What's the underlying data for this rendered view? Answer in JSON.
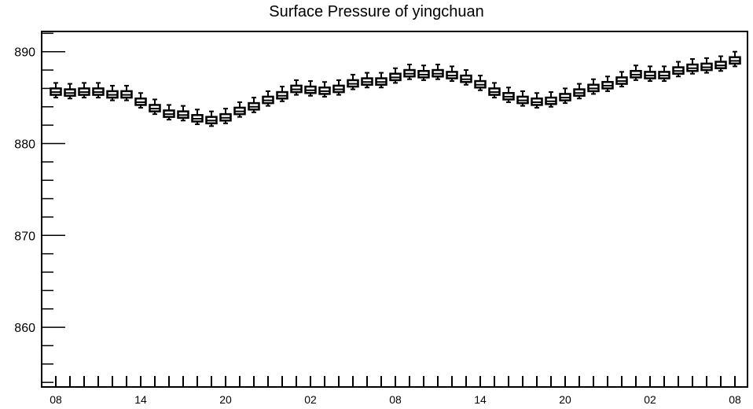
{
  "chart_data": {
    "type": "boxplot",
    "title": "Surface Pressure of yingchuan",
    "xlabel": "",
    "ylabel": "",
    "ylim": [
      853.5,
      892.2
    ],
    "yticks": [
      860,
      870,
      880,
      890
    ],
    "x_tick_labels": [
      "08",
      "14",
      "20",
      "02",
      "08",
      "14",
      "20",
      "02",
      "08"
    ],
    "grid": false,
    "box_count": 49,
    "series": [
      {
        "medians": [
          885.6,
          885.5,
          885.6,
          885.6,
          885.3,
          885.3,
          884.5,
          883.8,
          883.2,
          883.1,
          882.7,
          882.5,
          882.8,
          883.5,
          884.0,
          884.7,
          885.2,
          885.9,
          885.8,
          885.7,
          885.9,
          886.5,
          886.7,
          886.7,
          887.2,
          887.6,
          887.5,
          887.6,
          887.4,
          887.0,
          886.4,
          885.6,
          885.1,
          884.7,
          884.5,
          884.6,
          885.0,
          885.5,
          886.0,
          886.3,
          886.8,
          887.5,
          887.4,
          887.4,
          887.9,
          888.2,
          888.3,
          888.5,
          889.0
        ],
        "q1": [
          885.3,
          885.2,
          885.3,
          885.3,
          885.0,
          885.0,
          884.2,
          883.5,
          882.9,
          882.8,
          882.4,
          882.2,
          882.5,
          883.2,
          883.7,
          884.4,
          884.9,
          885.6,
          885.5,
          885.4,
          885.6,
          886.2,
          886.4,
          886.4,
          886.9,
          887.3,
          887.2,
          887.3,
          887.1,
          886.7,
          886.1,
          885.3,
          884.8,
          884.4,
          884.2,
          884.3,
          884.7,
          885.2,
          885.7,
          886.0,
          886.5,
          887.2,
          887.1,
          887.1,
          887.6,
          887.9,
          888.0,
          888.2,
          888.7
        ],
        "q3": [
          886.0,
          885.9,
          886.0,
          886.0,
          885.7,
          885.7,
          884.9,
          884.2,
          883.6,
          883.5,
          883.1,
          882.9,
          883.2,
          883.9,
          884.4,
          885.1,
          885.6,
          886.3,
          886.2,
          886.1,
          886.3,
          886.9,
          887.1,
          887.1,
          887.6,
          888.0,
          887.9,
          888.0,
          887.8,
          887.4,
          886.8,
          886.0,
          885.5,
          885.1,
          884.9,
          885.0,
          885.4,
          885.9,
          886.4,
          886.7,
          887.2,
          887.9,
          887.8,
          887.8,
          888.3,
          888.6,
          888.7,
          888.9,
          889.4
        ],
        "low": [
          885.0,
          884.9,
          885.0,
          885.0,
          884.7,
          884.7,
          883.9,
          883.2,
          882.6,
          882.5,
          882.1,
          881.9,
          882.2,
          882.9,
          883.4,
          884.1,
          884.6,
          885.3,
          885.2,
          885.1,
          885.3,
          885.9,
          886.1,
          886.1,
          886.6,
          887.0,
          886.9,
          887.0,
          886.8,
          886.4,
          885.8,
          885.0,
          884.5,
          884.1,
          883.9,
          884.0,
          884.4,
          884.9,
          885.4,
          885.7,
          886.2,
          886.9,
          886.8,
          886.8,
          887.3,
          887.6,
          887.7,
          887.9,
          888.4
        ],
        "high": [
          886.6,
          886.5,
          886.6,
          886.6,
          886.3,
          886.3,
          885.5,
          884.8,
          884.2,
          884.1,
          883.7,
          883.5,
          883.8,
          884.5,
          885.0,
          885.7,
          886.2,
          886.9,
          886.8,
          886.7,
          886.9,
          887.5,
          887.7,
          887.7,
          888.2,
          888.6,
          888.5,
          888.6,
          888.4,
          888.0,
          887.4,
          886.6,
          886.1,
          885.7,
          885.5,
          885.6,
          886.0,
          886.5,
          887.0,
          887.3,
          887.8,
          888.5,
          888.4,
          888.4,
          888.9,
          889.2,
          889.3,
          889.5,
          890.0
        ]
      }
    ]
  }
}
